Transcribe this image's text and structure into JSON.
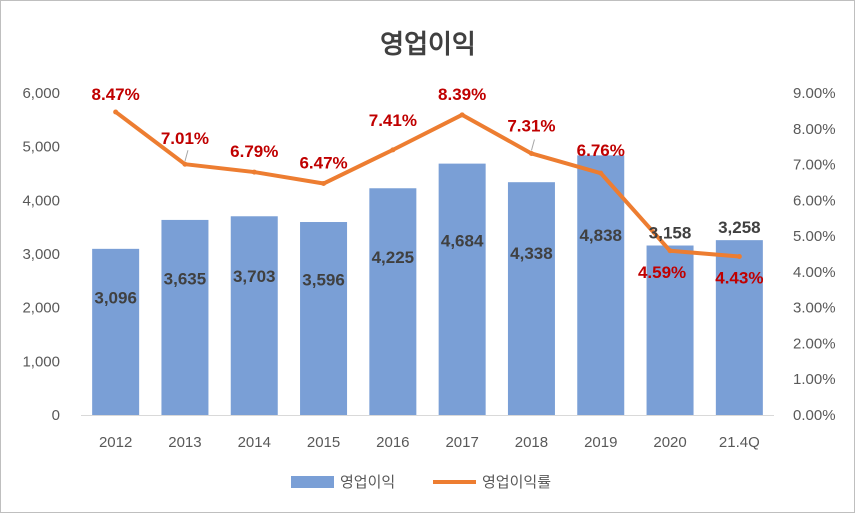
{
  "chart_data": {
    "type": "bar+line",
    "title": "영업이익",
    "categories": [
      "2012",
      "2013",
      "2014",
      "2015",
      "2016",
      "2017",
      "2018",
      "2019",
      "2020",
      "21.4Q"
    ],
    "y_left": {
      "ticks": [
        "0",
        "1,000",
        "2,000",
        "3,000",
        "4,000",
        "5,000",
        "6,000"
      ],
      "ylim": [
        0,
        6000
      ]
    },
    "y_right": {
      "ticks": [
        "0.00%",
        "1.00%",
        "2.00%",
        "3.00%",
        "4.00%",
        "5.00%",
        "6.00%",
        "7.00%",
        "8.00%",
        "9.00%"
      ],
      "ylim": [
        0,
        9
      ]
    },
    "series": [
      {
        "name": "영업이익",
        "type": "bar",
        "axis": "left",
        "color": "#7a9fd6",
        "values": [
          3096,
          3635,
          3703,
          3596,
          4225,
          4684,
          4338,
          4838,
          3158,
          3258
        ],
        "labels": [
          "3,096",
          "3,635",
          "3,703",
          "3,596",
          "4,225",
          "4,684",
          "4,338",
          "4,838",
          "3,158",
          "3,258"
        ]
      },
      {
        "name": "영업이익률",
        "type": "line",
        "axis": "right",
        "color": "#ed7d31",
        "values": [
          8.47,
          7.01,
          6.79,
          6.47,
          7.41,
          8.39,
          7.31,
          6.76,
          4.59,
          4.43
        ],
        "labels": [
          "8.47%",
          "7.01%",
          "6.79%",
          "6.47%",
          "7.41%",
          "8.39%",
          "7.31%",
          "6.76%",
          "4.59%",
          "4.43%"
        ]
      }
    ],
    "legend": "bottom",
    "grid": false
  }
}
